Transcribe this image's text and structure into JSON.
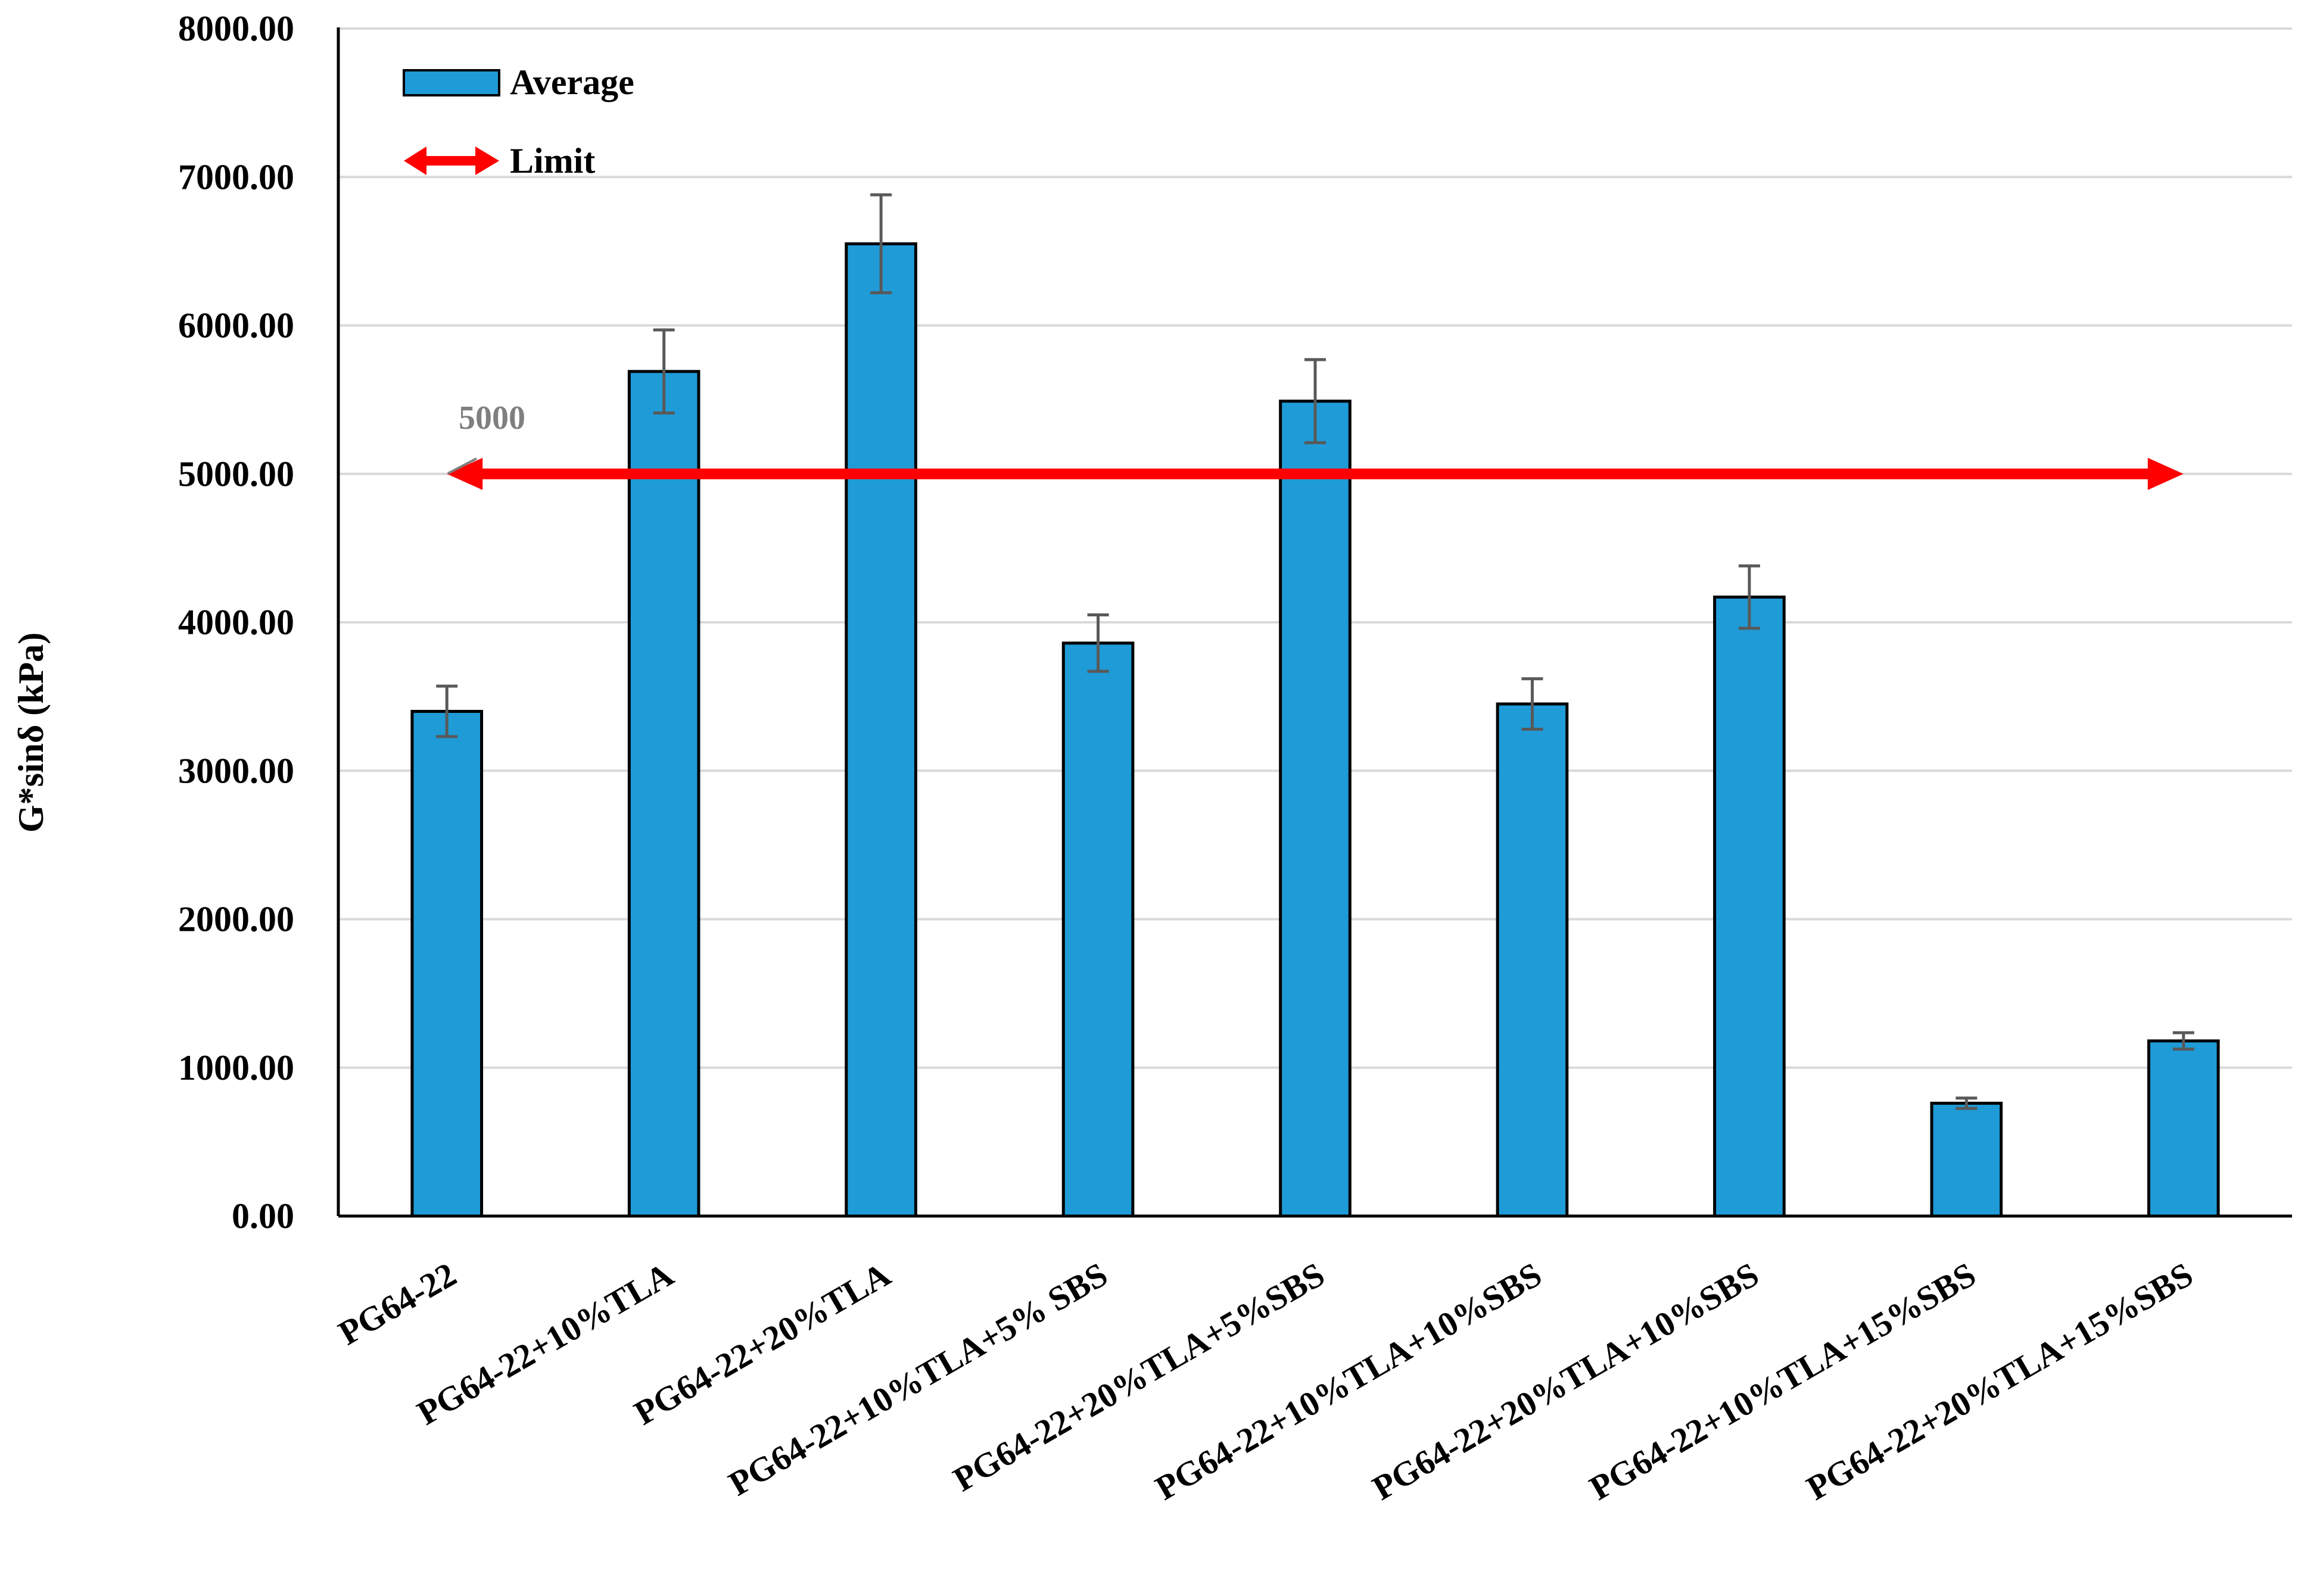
{
  "chart_data": {
    "type": "bar",
    "title": "",
    "xlabel": "",
    "ylabel": "G*sinδ (kPa)",
    "ylim": [
      0,
      8000
    ],
    "ytick_step": 1000,
    "ytick_labels": [
      "0.00",
      "1000.00",
      "2000.00",
      "3000.00",
      "4000.00",
      "5000.00",
      "6000.00",
      "7000.00",
      "8000.00"
    ],
    "grid": true,
    "categories": [
      "PG64-22",
      "PG64-22+10%TLA",
      "PG64-22+20%TLA",
      "PG64-22+10%TLA+5% SBS",
      "PG64-22+20%TLA+5%SBS",
      "PG64-22+10%TLA+10%SBS",
      "PG64-22+20%TLA+10%SBS",
      "PG64-22+10%TLA+15%SBS",
      "PG64-22+20%TLA+15%SBS"
    ],
    "series": [
      {
        "name": "Average",
        "color": "#1f9bd7",
        "values": [
          3400,
          5690,
          6550,
          3860,
          5490,
          3450,
          4170,
          760,
          1180
        ],
        "errors": [
          170,
          280,
          330,
          190,
          280,
          170,
          210,
          35,
          55
        ]
      }
    ],
    "limit": {
      "name": "Limit",
      "value": 5000,
      "label": "5000",
      "color": "#ff0000"
    },
    "legend": {
      "position": "top-left",
      "items": [
        "Average",
        "Limit"
      ]
    }
  }
}
